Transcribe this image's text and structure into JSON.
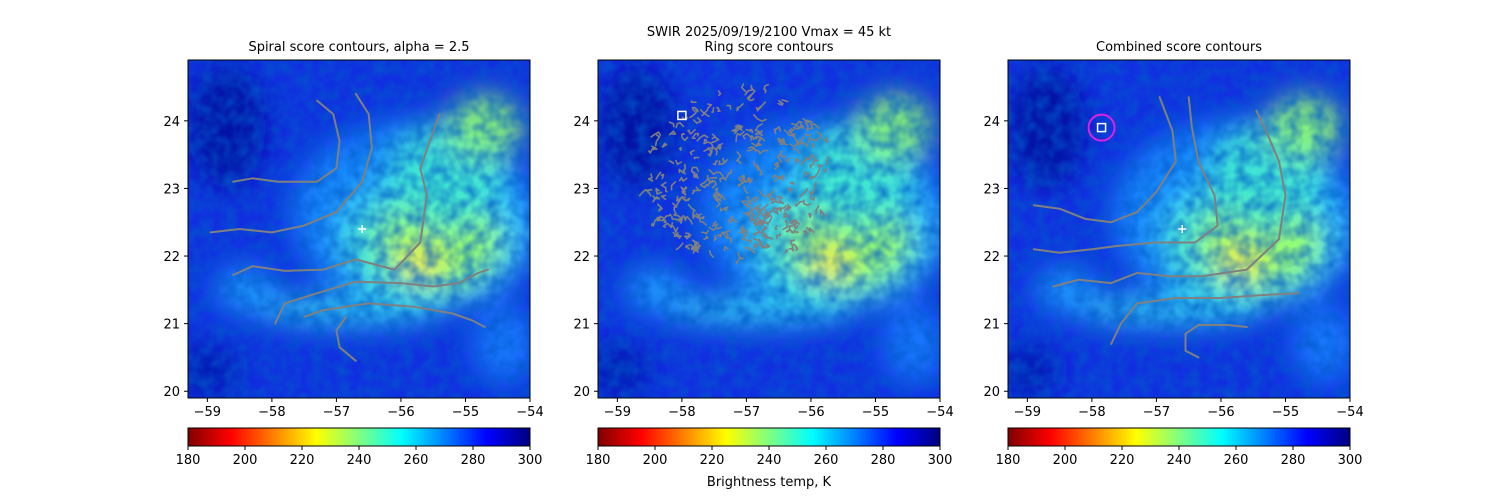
{
  "figure": {
    "suptitle_line1": "SWIR  2025/09/19/2100    Vmax = 45 kt",
    "colorbar_label": "Brightness temp, K",
    "colormap": [
      "#800000",
      "#ff0000",
      "#ff8000",
      "#ffff00",
      "#80ff80",
      "#00ffff",
      "#0080ff",
      "#0000ff",
      "#000080"
    ]
  },
  "chart_data": [
    {
      "type": "heatmap",
      "title": "Spiral score contours, alpha =  2.5",
      "xlim": [
        -59.3,
        -54.0
      ],
      "ylim": [
        19.9,
        24.9
      ],
      "xticks": [
        -59,
        -58,
        -57,
        -56,
        -55,
        -54
      ],
      "yticks": [
        20,
        21,
        22,
        23,
        24
      ],
      "colorbar": {
        "range": [
          180,
          300
        ],
        "ticks": [
          180,
          200,
          220,
          240,
          260,
          280,
          300
        ]
      },
      "center_marker": {
        "x": -56.6,
        "y": 22.4,
        "color": "#ffffff"
      },
      "contour_color": "#808080",
      "contours": [
        [
          [
            -58.6,
            23.1
          ],
          [
            -58.3,
            23.15
          ],
          [
            -57.9,
            23.1
          ],
          [
            -57.3,
            23.1
          ],
          [
            -57.0,
            23.3
          ],
          [
            -56.95,
            23.7
          ],
          [
            -57.05,
            24.1
          ],
          [
            -57.3,
            24.3
          ]
        ],
        [
          [
            -58.95,
            22.35
          ],
          [
            -58.5,
            22.4
          ],
          [
            -58.0,
            22.35
          ],
          [
            -57.5,
            22.45
          ],
          [
            -57.0,
            22.65
          ],
          [
            -56.6,
            23.1
          ],
          [
            -56.45,
            23.6
          ],
          [
            -56.5,
            24.1
          ],
          [
            -56.7,
            24.4
          ]
        ],
        [
          [
            -58.6,
            21.72
          ],
          [
            -58.3,
            21.85
          ],
          [
            -57.8,
            21.78
          ],
          [
            -57.2,
            21.8
          ],
          [
            -56.7,
            21.95
          ],
          [
            -56.1,
            21.8
          ],
          [
            -55.7,
            22.2
          ],
          [
            -55.6,
            22.9
          ],
          [
            -55.7,
            23.3
          ],
          [
            -55.55,
            23.7
          ],
          [
            -55.4,
            24.1
          ]
        ],
        [
          [
            -57.95,
            21.0
          ],
          [
            -57.8,
            21.3
          ],
          [
            -57.3,
            21.45
          ],
          [
            -56.7,
            21.62
          ],
          [
            -56.0,
            21.6
          ],
          [
            -55.5,
            21.55
          ],
          [
            -55.1,
            21.6
          ],
          [
            -54.8,
            21.75
          ],
          [
            -54.65,
            21.8
          ]
        ],
        [
          [
            -57.5,
            21.1
          ],
          [
            -57.2,
            21.2
          ],
          [
            -56.5,
            21.3
          ],
          [
            -55.8,
            21.25
          ],
          [
            -55.2,
            21.15
          ],
          [
            -54.9,
            21.05
          ],
          [
            -54.7,
            20.95
          ]
        ],
        [
          [
            -56.7,
            20.45
          ],
          [
            -56.95,
            20.65
          ],
          [
            -57.0,
            20.9
          ],
          [
            -56.85,
            21.1
          ]
        ]
      ]
    },
    {
      "type": "heatmap",
      "title": "Ring score contours",
      "xlim": [
        -59.3,
        -54.0
      ],
      "ylim": [
        19.9,
        24.9
      ],
      "xticks": [
        -59,
        -58,
        -57,
        -56,
        -55,
        -54
      ],
      "yticks": [
        20,
        21,
        22,
        23,
        24
      ],
      "colorbar": {
        "range": [
          180,
          300
        ],
        "ticks": [
          180,
          200,
          220,
          240,
          260,
          280,
          300
        ]
      },
      "square_marker": {
        "x": -58.0,
        "y": 24.08,
        "color": "#ffffff"
      },
      "ring_region": {
        "center": [
          -57.1,
          23.2
        ],
        "radius_x": 1.45,
        "radius_y": 1.3
      },
      "contour_color": "#808080"
    },
    {
      "type": "heatmap",
      "title": "Combined score contours",
      "xlim": [
        -59.3,
        -54.0
      ],
      "ylim": [
        19.9,
        24.9
      ],
      "xticks": [
        -59,
        -58,
        -57,
        -56,
        -55,
        -54
      ],
      "yticks": [
        20,
        21,
        22,
        23,
        24
      ],
      "colorbar": {
        "range": [
          180,
          300
        ],
        "ticks": [
          180,
          200,
          220,
          240,
          260,
          280,
          300
        ]
      },
      "center_marker": {
        "x": -56.6,
        "y": 22.4,
        "color": "#ffffff"
      },
      "square_marker": {
        "x": -57.85,
        "y": 23.9,
        "color": "#ffffff"
      },
      "circle_marker": {
        "x": -57.85,
        "y": 23.9,
        "color": "#e020e0"
      },
      "contour_color": "#808080",
      "contours": [
        [
          [
            -58.9,
            22.75
          ],
          [
            -58.5,
            22.7
          ],
          [
            -58.1,
            22.55
          ],
          [
            -57.7,
            22.5
          ],
          [
            -57.3,
            22.65
          ],
          [
            -57.0,
            22.95
          ],
          [
            -56.7,
            23.4
          ],
          [
            -56.75,
            23.85
          ],
          [
            -56.85,
            24.1
          ],
          [
            -56.95,
            24.35
          ]
        ],
        [
          [
            -58.9,
            22.1
          ],
          [
            -58.5,
            22.05
          ],
          [
            -58.0,
            22.1
          ],
          [
            -57.6,
            22.15
          ],
          [
            -57.0,
            22.2
          ],
          [
            -56.4,
            22.2
          ],
          [
            -56.05,
            22.45
          ],
          [
            -56.1,
            22.9
          ],
          [
            -56.35,
            23.4
          ],
          [
            -56.45,
            23.9
          ],
          [
            -56.5,
            24.35
          ]
        ],
        [
          [
            -58.6,
            21.55
          ],
          [
            -58.2,
            21.65
          ],
          [
            -57.7,
            21.6
          ],
          [
            -57.3,
            21.75
          ],
          [
            -56.8,
            21.7
          ],
          [
            -56.3,
            21.7
          ],
          [
            -55.6,
            21.8
          ],
          [
            -55.1,
            22.25
          ],
          [
            -55.0,
            22.9
          ],
          [
            -55.1,
            23.4
          ],
          [
            -55.3,
            23.85
          ],
          [
            -55.45,
            24.15
          ]
        ],
        [
          [
            -57.7,
            20.7
          ],
          [
            -57.55,
            21.0
          ],
          [
            -57.3,
            21.3
          ],
          [
            -56.7,
            21.38
          ],
          [
            -56.0,
            21.38
          ],
          [
            -55.4,
            21.42
          ],
          [
            -54.8,
            21.45
          ]
        ],
        [
          [
            -56.35,
            20.5
          ],
          [
            -56.55,
            20.6
          ],
          [
            -56.55,
            20.85
          ],
          [
            -56.35,
            20.98
          ],
          [
            -55.9,
            20.98
          ],
          [
            -55.6,
            20.95
          ]
        ]
      ]
    }
  ]
}
